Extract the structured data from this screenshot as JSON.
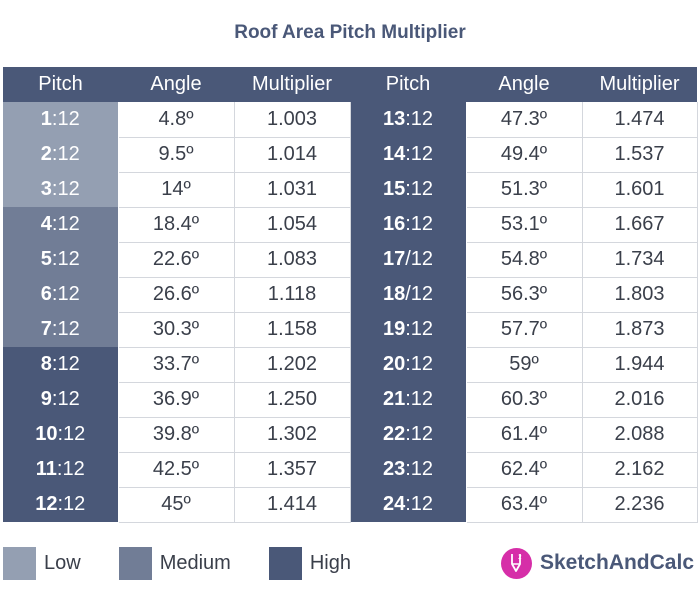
{
  "title": "Roof Area Pitch Multiplier",
  "headers": {
    "left_pitch": "Pitch",
    "left_angle": "Angle",
    "left_multiplier": "Multiplier",
    "right_pitch": "Pitch",
    "right_angle": "Angle",
    "right_multiplier": "Multiplier"
  },
  "pitch_suffix": ":12",
  "pitch_suffix_slash": "/12",
  "rows": [
    {
      "lp": "1",
      "la": "4.8º",
      "lm": "1.003",
      "rp": "13",
      "ra": "47.3º",
      "rm": "1.474"
    },
    {
      "lp": "2",
      "la": "9.5º",
      "lm": "1.014",
      "rp": "14",
      "ra": "49.4º",
      "rm": "1.537"
    },
    {
      "lp": "3",
      "la": "14º",
      "lm": "1.031",
      "rp": "15",
      "ra": "51.3º",
      "rm": "1.601"
    },
    {
      "lp": "4",
      "la": "18.4º",
      "lm": "1.054",
      "rp": "16",
      "ra": "53.1º",
      "rm": "1.667"
    },
    {
      "lp": "5",
      "la": "22.6º",
      "lm": "1.083",
      "rp": "17",
      "ra": "54.8º",
      "rm": "1.734"
    },
    {
      "lp": "6",
      "la": "26.6º",
      "lm": "1.118",
      "rp": "18",
      "ra": "56.3º",
      "rm": "1.803"
    },
    {
      "lp": "7",
      "la": "30.3º",
      "lm": "1.158",
      "rp": "19",
      "ra": "57.7º",
      "rm": "1.873"
    },
    {
      "lp": "8",
      "la": "33.7º",
      "lm": "1.202",
      "rp": "20",
      "ra": "59º",
      "rm": "1.944"
    },
    {
      "lp": "9",
      "la": "36.9º",
      "lm": "1.250",
      "rp": "21",
      "ra": "60.3º",
      "rm": "2.016"
    },
    {
      "lp": "10",
      "la": "39.8º",
      "lm": "1.302",
      "rp": "22",
      "ra": "61.4º",
      "rm": "2.088"
    },
    {
      "lp": "11",
      "la": "42.5º",
      "lm": "1.357",
      "rp": "23",
      "ra": "62.4º",
      "rm": "2.162"
    },
    {
      "lp": "12",
      "la": "45º",
      "lm": "1.414",
      "rp": "24",
      "ra": "63.4º",
      "rm": "2.236"
    }
  ],
  "legend": {
    "low": "Low",
    "medium": "Medium",
    "high": "High"
  },
  "colors": {
    "low": "#949fb2",
    "medium": "#717d96",
    "high": "#4a5878",
    "brand": "#d62ea8"
  },
  "brand": {
    "name": "SketchAndCalc",
    "icon": "pencil-logo-icon"
  }
}
